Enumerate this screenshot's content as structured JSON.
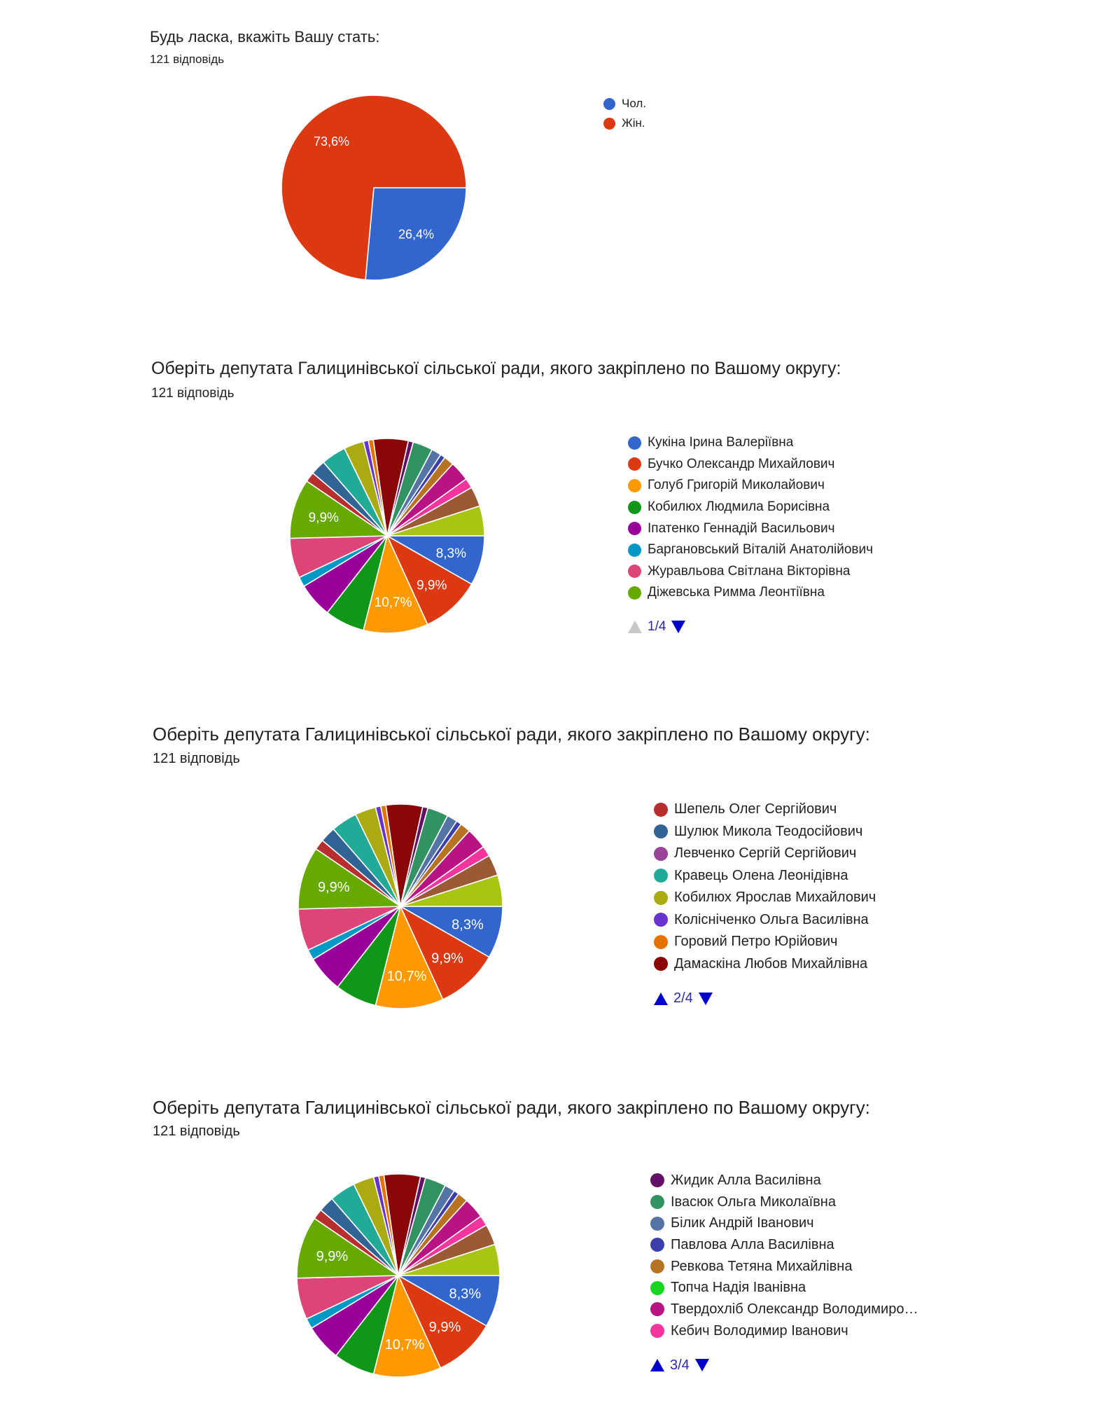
{
  "chart_data": [
    {
      "type": "pie",
      "title": "Будь ласка, вкажіть Вашу стать:",
      "subtitle": "121 відповідь",
      "values": [
        32,
        89
      ],
      "colors": [
        "#3366cc",
        "#dc3912"
      ],
      "data_labels": [
        "26,4%",
        "73,6%"
      ],
      "legend": {
        "placement": "right",
        "items": [
          {
            "label": "Чол.",
            "color": "#3366cc"
          },
          {
            "label": "Жін.",
            "color": "#dc3912"
          }
        ]
      }
    },
    {
      "type": "pie",
      "title": "Оберіть депутата Галицинівської сільської ради, якого закріплено по Вашому округу:",
      "subtitle": "121 відповідь",
      "values": [
        10,
        12,
        13,
        8,
        7,
        2,
        8,
        12,
        2,
        3,
        0,
        5,
        4,
        1,
        1,
        7,
        1,
        4,
        2,
        1,
        2,
        0,
        4,
        2,
        4,
        6
      ],
      "colors": [
        "#3366cc",
        "#dc3912",
        "#ff9900",
        "#109618",
        "#990099",
        "#0099c6",
        "#dd4477",
        "#66aa00",
        "#b82e2e",
        "#316395",
        "#994499",
        "#22aa99",
        "#aaaa11",
        "#6633cc",
        "#e67300",
        "#8b0707",
        "#651067",
        "#329262",
        "#5574a6",
        "#3b3eac",
        "#b77322",
        "#16d620",
        "#b91383",
        "#f4359e",
        "#9c5935",
        "#a9c413"
      ],
      "data_labels": [
        "8,3%",
        "9,9%",
        "10,7%",
        "",
        "",
        "",
        "",
        "9,9%",
        "",
        "",
        "",
        "",
        "",
        "",
        "",
        "",
        "",
        "",
        "",
        "",
        "",
        "",
        "",
        "",
        "",
        ""
      ],
      "legend": {
        "placement": "right",
        "page": "1/4",
        "up_enabled": false,
        "items": [
          {
            "label": "Кукіна Ірина Валеріївна",
            "color": "#3366cc"
          },
          {
            "label": "Бучко Олександр Михайлович",
            "color": "#dc3912"
          },
          {
            "label": "Голуб Григорій Миколайович",
            "color": "#ff9900"
          },
          {
            "label": "Кобилюх Людмила Борисівна",
            "color": "#109618"
          },
          {
            "label": "Іпатенко Геннадій Васильович",
            "color": "#990099"
          },
          {
            "label": "Баргановський Віталій Анатолійович",
            "color": "#0099c6"
          },
          {
            "label": "Журавльова Світлана Вікторівна",
            "color": "#dd4477"
          },
          {
            "label": "Діжевська Римма Леонтіївна",
            "color": "#66aa00"
          }
        ]
      }
    },
    {
      "type": "pie",
      "title": "Оберіть депутата Галицинівської сільської ради, якого закріплено по Вашому округу:",
      "subtitle": "121 відповідь",
      "values": [
        10,
        12,
        13,
        8,
        7,
        2,
        8,
        12,
        2,
        3,
        0,
        5,
        4,
        1,
        1,
        7,
        1,
        4,
        2,
        1,
        2,
        0,
        4,
        2,
        4,
        6
      ],
      "colors": [
        "#3366cc",
        "#dc3912",
        "#ff9900",
        "#109618",
        "#990099",
        "#0099c6",
        "#dd4477",
        "#66aa00",
        "#b82e2e",
        "#316395",
        "#994499",
        "#22aa99",
        "#aaaa11",
        "#6633cc",
        "#e67300",
        "#8b0707",
        "#651067",
        "#329262",
        "#5574a6",
        "#3b3eac",
        "#b77322",
        "#16d620",
        "#b91383",
        "#f4359e",
        "#9c5935",
        "#a9c413"
      ],
      "data_labels": [
        "8,3%",
        "9,9%",
        "10,7%",
        "",
        "",
        "",
        "",
        "9,9%",
        "",
        "",
        "",
        "",
        "",
        "",
        "",
        "",
        "",
        "",
        "",
        "",
        "",
        "",
        "",
        "",
        "",
        ""
      ],
      "legend": {
        "placement": "right",
        "page": "2/4",
        "up_enabled": true,
        "items": [
          {
            "label": "Шепель Олег Сергійович",
            "color": "#b82e2e"
          },
          {
            "label": "Шулюк Микола Теодосійович",
            "color": "#316395"
          },
          {
            "label": "Левченко Сергій Сергійович",
            "color": "#994499"
          },
          {
            "label": "Кравець Олена Леонідівна",
            "color": "#22aa99"
          },
          {
            "label": "Кобилюх Ярослав Михайлович",
            "color": "#aaaa11"
          },
          {
            "label": "Колісніченко Ольга Василівна",
            "color": "#6633cc"
          },
          {
            "label": "Горовий Петро Юрійович",
            "color": "#e67300"
          },
          {
            "label": "Дамаскіна Любов Михайлівна",
            "color": "#8b0707"
          }
        ]
      }
    },
    {
      "type": "pie",
      "title": "Оберіть депутата Галицинівської сільської ради, якого закріплено по Вашому округу:",
      "subtitle": "121 відповідь",
      "values": [
        10,
        12,
        13,
        8,
        7,
        2,
        8,
        12,
        2,
        3,
        0,
        5,
        4,
        1,
        1,
        7,
        1,
        4,
        2,
        1,
        2,
        0,
        4,
        2,
        4,
        6
      ],
      "colors": [
        "#3366cc",
        "#dc3912",
        "#ff9900",
        "#109618",
        "#990099",
        "#0099c6",
        "#dd4477",
        "#66aa00",
        "#b82e2e",
        "#316395",
        "#994499",
        "#22aa99",
        "#aaaa11",
        "#6633cc",
        "#e67300",
        "#8b0707",
        "#651067",
        "#329262",
        "#5574a6",
        "#3b3eac",
        "#b77322",
        "#16d620",
        "#b91383",
        "#f4359e",
        "#9c5935",
        "#a9c413"
      ],
      "data_labels": [
        "8,3%",
        "9,9%",
        "10,7%",
        "",
        "",
        "",
        "",
        "9,9%",
        "",
        "",
        "",
        "",
        "",
        "",
        "",
        "",
        "",
        "",
        "",
        "",
        "",
        "",
        "",
        "",
        "",
        ""
      ],
      "legend": {
        "placement": "right",
        "page": "3/4",
        "up_enabled": true,
        "items": [
          {
            "label": "Жидик Алла Василівна",
            "color": "#651067"
          },
          {
            "label": "Івасюк Ольга Миколаївна",
            "color": "#329262"
          },
          {
            "label": "Білик Андрій Іванович",
            "color": "#5574a6"
          },
          {
            "label": "Павлова Алла Василівна",
            "color": "#3b3eac"
          },
          {
            "label": "Ревкова Тетяна Михайлівна",
            "color": "#b77322"
          },
          {
            "label": "Топча Надія Іванівна",
            "color": "#16d620"
          },
          {
            "label": "Твердохліб Олександр Володимиро…",
            "color": "#b91383"
          },
          {
            "label": "Кебич Володимир Іванович",
            "color": "#f4359e"
          }
        ]
      }
    }
  ]
}
